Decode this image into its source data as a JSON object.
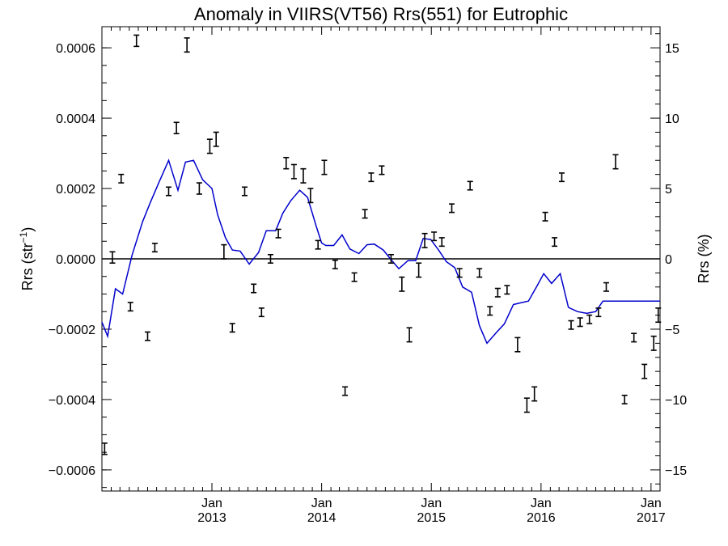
{
  "chart_data": {
    "type": "line",
    "title": "Anomaly in VIIRS(VT56) Rrs(551) for Eutrophic",
    "ylabel_left_base": "Rrs (str",
    "ylabel_left_sup": "−1",
    "ylabel_left_end": ")",
    "ylabel_right": "Rrs (%)",
    "xlim": [
      "2012-01-01",
      "2017-01-31"
    ],
    "ylim_left": [
      -0.00066,
      0.00066
    ],
    "ylim_right": [
      -16.5,
      16.5
    ],
    "grid": false,
    "x_ticks": [
      {
        "month": "Jan",
        "year": "2013",
        "date": "2013-01-01"
      },
      {
        "month": "Jan",
        "year": "2014",
        "date": "2014-01-01"
      },
      {
        "month": "Jan",
        "year": "2015",
        "date": "2015-01-01"
      },
      {
        "month": "Jan",
        "year": "2016",
        "date": "2016-01-01"
      },
      {
        "month": "Jan",
        "year": "2017",
        "date": "2017-01-01"
      }
    ],
    "y_ticks_left": [
      {
        "value": 0.0006,
        "label": "0.0006"
      },
      {
        "value": 0.0004,
        "label": "0.0004"
      },
      {
        "value": 0.0002,
        "label": "0.0002"
      },
      {
        "value": 0.0,
        "label": "0.0000"
      },
      {
        "value": -0.0002,
        "label": "−0.0002"
      },
      {
        "value": -0.0004,
        "label": "−0.0004"
      },
      {
        "value": -0.0006,
        "label": "−0.0006"
      }
    ],
    "y_ticks_right": [
      {
        "value": 15,
        "label": "15"
      },
      {
        "value": 10,
        "label": "10"
      },
      {
        "value": 5,
        "label": "5"
      },
      {
        "value": 0,
        "label": "0"
      },
      {
        "value": -5,
        "label": "−5"
      },
      {
        "value": -10,
        "label": "−10"
      },
      {
        "value": -15,
        "label": "−15"
      }
    ],
    "line_color": "#0000cc",
    "errorbar_color": "#000000",
    "series": [
      {
        "type": "line",
        "axis": "left",
        "x": [
          "2012-01-01",
          "2012-01-20",
          "2012-02-15",
          "2012-03-10",
          "2012-04-10",
          "2012-05-15",
          "2012-06-10",
          "2012-07-10",
          "2012-08-10",
          "2012-09-10",
          "2012-10-05",
          "2012-11-01",
          "2012-12-01",
          "2013-01-01",
          "2013-01-20",
          "2013-02-15",
          "2013-03-10",
          "2013-04-05",
          "2013-05-05",
          "2013-06-05",
          "2013-07-01",
          "2013-08-01",
          "2013-08-25",
          "2013-09-20",
          "2013-10-20",
          "2013-11-15",
          "2013-12-15",
          "2014-01-01",
          "2014-01-15",
          "2014-02-10",
          "2014-03-10",
          "2014-04-05",
          "2014-05-05",
          "2014-06-01",
          "2014-06-25",
          "2014-07-25",
          "2014-08-20",
          "2014-09-15",
          "2014-10-15",
          "2014-11-10",
          "2014-12-05",
          "2014-12-30",
          "2015-01-25",
          "2015-02-20",
          "2015-03-20",
          "2015-04-15",
          "2015-05-15",
          "2015-06-10",
          "2015-07-05",
          "2015-08-05",
          "2015-09-01",
          "2015-10-01",
          "2015-10-25",
          "2015-11-20",
          "2015-12-20",
          "2016-01-10",
          "2016-02-05",
          "2016-03-05",
          "2016-04-01",
          "2016-05-01",
          "2016-06-01",
          "2016-07-01",
          "2016-07-25",
          "2016-08-25",
          "2016-09-20",
          "2016-10-20",
          "2016-11-15",
          "2016-12-15",
          "2017-01-10",
          "2017-01-31"
        ],
        "values": [
          -0.00018,
          -0.00022,
          -8.5e-05,
          -0.0001,
          1e-05,
          0.000105,
          0.00016,
          0.00022,
          0.00028,
          0.000195,
          0.000275,
          0.00028,
          0.000225,
          0.0002,
          0.000125,
          6e-05,
          2.5e-05,
          2.2e-05,
          -1.5e-05,
          1.8e-05,
          8e-05,
          8e-05,
          0.00013,
          0.000165,
          0.000195,
          0.000175,
          9e-05,
          4.5e-05,
          3.8e-05,
          3.8e-05,
          6.8e-05,
          2.8e-05,
          1.5e-05,
          4e-05,
          4.2e-05,
          2.5e-05,
          -2e-06,
          -2.8e-05,
          -5e-06,
          -5e-06,
          5.8e-05,
          5.5e-05,
          2.5e-05,
          -8e-06,
          -2.5e-05,
          -8e-05,
          -9.5e-05,
          -0.00019,
          -0.00024,
          -0.00021,
          -0.000185,
          -0.00013,
          -0.000125,
          -0.00012,
          -7.5e-05,
          -4.2e-05,
          -7e-05,
          -4.2e-05,
          -0.000138,
          -0.00015,
          -0.000155,
          -0.00015,
          -0.00012,
          -0.00012,
          -0.00012,
          -0.00012,
          -0.00012,
          -0.00012,
          -0.00012,
          -0.00012
        ]
      },
      {
        "type": "errorbar",
        "axis": "right",
        "x": [
          "2012-01-10",
          "2012-02-05",
          "2012-03-05",
          "2012-04-05",
          "2012-04-25",
          "2012-06-01",
          "2012-06-25",
          "2012-08-10",
          "2012-09-05",
          "2012-10-10",
          "2012-11-20",
          "2012-12-25",
          "2013-01-15",
          "2013-02-10",
          "2013-03-10",
          "2013-04-20",
          "2013-05-20",
          "2013-06-15",
          "2013-07-15",
          "2013-08-10",
          "2013-09-05",
          "2013-10-01",
          "2013-11-01",
          "2013-11-25",
          "2013-12-20",
          "2014-01-10",
          "2014-02-15",
          "2014-03-20",
          "2014-04-20",
          "2014-05-25",
          "2014-06-15",
          "2014-07-20",
          "2014-08-20",
          "2014-09-25",
          "2014-10-20",
          "2014-11-20",
          "2014-12-10",
          "2015-01-10",
          "2015-02-05",
          "2015-03-10",
          "2015-04-05",
          "2015-05-10",
          "2015-06-10",
          "2015-07-15",
          "2015-08-10",
          "2015-09-10",
          "2015-10-15",
          "2015-11-15",
          "2015-12-10",
          "2016-01-15",
          "2016-02-15",
          "2016-03-10",
          "2016-04-10",
          "2016-05-10",
          "2016-06-10",
          "2016-07-10",
          "2016-08-05",
          "2016-09-05",
          "2016-10-05",
          "2016-11-05",
          "2016-12-10",
          "2017-01-10",
          "2017-01-25"
        ],
        "values": [
          -13.5,
          0.1,
          5.7,
          -3.4,
          15.5,
          -5.5,
          0.8,
          4.8,
          9.3,
          15.2,
          5.0,
          8.0,
          8.5,
          0.5,
          -4.9,
          4.8,
          -2.1,
          -3.8,
          0.0,
          1.8,
          6.8,
          6.2,
          5.9,
          4.5,
          1.0,
          6.5,
          -0.4,
          -9.4,
          -1.3,
          3.2,
          5.8,
          6.3,
          0.0,
          -1.8,
          -5.4,
          -0.8,
          1.3,
          1.6,
          1.2,
          3.6,
          -1.0,
          5.2,
          -1.0,
          -3.7,
          -2.4,
          -2.2,
          -6.1,
          -10.4,
          -9.6,
          3.0,
          1.2,
          5.8,
          -4.7,
          -4.5,
          -4.3,
          -3.8,
          -2.0,
          6.9,
          -10.0,
          -5.6,
          -8.0,
          -6.0,
          -4.0
        ],
        "error": [
          0.4,
          0.4,
          0.3,
          0.3,
          0.4,
          0.3,
          0.3,
          0.3,
          0.4,
          0.5,
          0.4,
          0.5,
          0.5,
          0.5,
          0.3,
          0.3,
          0.3,
          0.3,
          0.3,
          0.3,
          0.4,
          0.5,
          0.5,
          0.5,
          0.3,
          0.5,
          0.3,
          0.3,
          0.3,
          0.3,
          0.3,
          0.3,
          0.3,
          0.5,
          0.5,
          0.5,
          0.5,
          0.3,
          0.3,
          0.3,
          0.3,
          0.3,
          0.3,
          0.3,
          0.3,
          0.3,
          0.5,
          0.5,
          0.5,
          0.3,
          0.3,
          0.3,
          0.3,
          0.3,
          0.3,
          0.3,
          0.3,
          0.5,
          0.3,
          0.3,
          0.5,
          0.5,
          0.5
        ]
      }
    ]
  }
}
